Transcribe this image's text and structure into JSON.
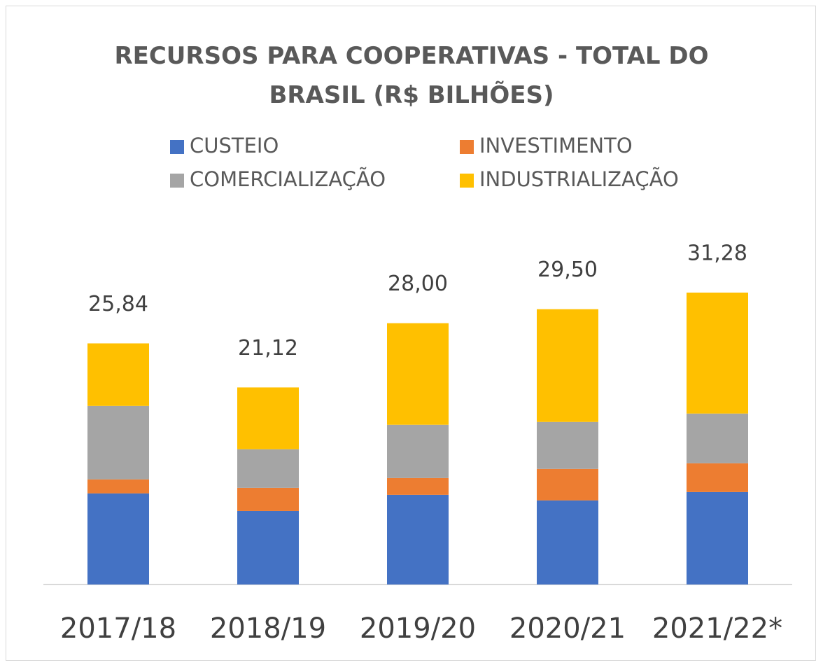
{
  "chart_data": {
    "type": "stacked_bar",
    "title": "RECURSOS PARA COOPERATIVAS - TOTAL DO BRASIL (R$ BILHÕES)",
    "categories": [
      "2017/18",
      "2018/19",
      "2019/20",
      "2020/21",
      "2021/22*"
    ],
    "series": [
      {
        "name": "CUSTEIO",
        "color": "#4472c4",
        "values": [
          9.76,
          7.88,
          9.61,
          9.01,
          9.91
        ]
      },
      {
        "name": "INVESTIMENTO",
        "color": "#ed7d31",
        "values": [
          1.5,
          2.48,
          1.8,
          3.38,
          3.08
        ]
      },
      {
        "name": "COMERCIALIZAÇÃO",
        "color": "#a5a5a5",
        "values": [
          7.88,
          4.13,
          5.71,
          5.03,
          5.33
        ]
      },
      {
        "name": "INDUSTRIALIZAÇÃO",
        "color": "#ffc000",
        "values": [
          6.7,
          6.63,
          10.88,
          12.08,
          12.96
        ]
      }
    ],
    "totals": [
      25.84,
      21.12,
      28.0,
      29.5,
      31.28
    ],
    "total_labels": [
      "25,84",
      "21,12",
      "28,00",
      "29,50",
      "31,28"
    ],
    "legend": "top"
  }
}
